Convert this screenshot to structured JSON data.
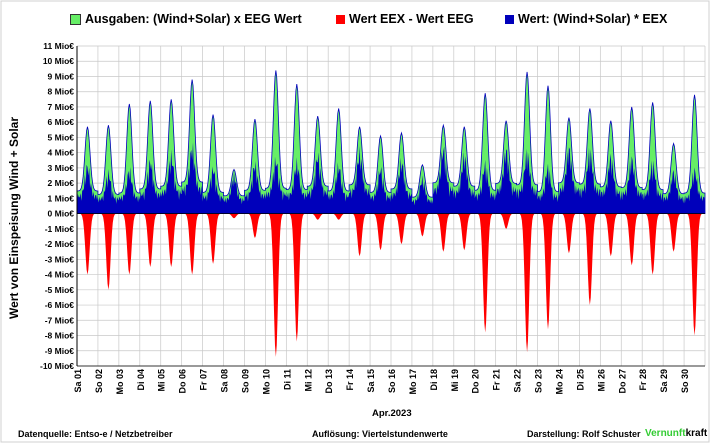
{
  "legend": {
    "green_label": "Ausgaben: (Wind+Solar) x EEG Wert",
    "red_label": "Wert EEX - Wert EEG",
    "blue_label": "Wert: (Wind+Solar) * EEX"
  },
  "footer": {
    "source": "Datenquelle: Entso-e  / Netzbetreiber",
    "resolution": "Auflösung: Viertelstundenwerte",
    "author": "Darstellung:  Rolf Schuster",
    "brand_part1": "Vernunft",
    "brand_part2": "kraft"
  },
  "chart_data": {
    "type": "area",
    "ylabel": "Wert von Einspeisung Wind + Solar",
    "xlabel": "Apr.2023",
    "ylim": [
      -10,
      11
    ],
    "y_ticks": [
      "11 Mio€",
      "10 Mio€",
      "9 Mio€",
      "8 Mio€",
      "7 Mio€",
      "6 Mio€",
      "5 Mio€",
      "4 Mio€",
      "3 Mio€",
      "2 Mio€",
      "1 Mio€",
      "0 Mio€",
      "-1 Mio€",
      "-2 Mio€",
      "-3 Mio€",
      "-4 Mio€",
      "-5 Mio€",
      "-6 Mio€",
      "-7 Mio€",
      "-8 Mio€",
      "-9 Mio€",
      "-10 Mio€"
    ],
    "categories": [
      "Sa 01",
      "So 02",
      "Mo 03",
      "Di 04",
      "Mi 05",
      "Do 06",
      "Fr 07",
      "Sa 08",
      "So 09",
      "Mo 10",
      "Di 11",
      "Mi 12",
      "Do 13",
      "Fr 14",
      "Sa 15",
      "So 16",
      "Mo 17",
      "Di 18",
      "Mi 19",
      "Do 20",
      "Fr 21",
      "Sa 22",
      "So 23",
      "Mo 24",
      "Di 25",
      "Mi 26",
      "Do 27",
      "Fr 28",
      "Sa 29",
      "So 30"
    ],
    "grid": true,
    "legend_position": "top",
    "colors": {
      "green": "#66ee66",
      "red": "#ff0000",
      "blue": "#0000bb"
    },
    "series": [
      {
        "name": "Ausgaben: (Wind+Solar) x EEG Wert",
        "values": [
          5.7,
          5.8,
          7.2,
          7.4,
          7.5,
          8.8,
          6.5,
          2.9,
          6.2,
          9.4,
          8.5,
          6.4,
          6.9,
          5.7,
          5.1,
          5.3,
          3.2,
          5.8,
          5.7,
          7.9,
          6.1,
          9.3,
          8.4,
          6.3,
          6.9,
          6.1,
          7.0,
          7.3,
          4.6,
          7.8
        ]
      },
      {
        "name": "Wert EEX - Wert EEG",
        "values": [
          -4.0,
          -5.0,
          -4.0,
          -3.5,
          -3.5,
          -4.0,
          -3.3,
          -0.3,
          -1.6,
          -9.4,
          -8.4,
          -0.4,
          -0.4,
          -2.8,
          -2.4,
          -2.0,
          -1.5,
          -2.5,
          -2.4,
          -7.8,
          -1.0,
          -9.1,
          -7.6,
          -2.6,
          -6.0,
          -2.8,
          -3.4,
          -4.0,
          -2.5,
          -8.0
        ]
      },
      {
        "name": "Wert: (Wind+Solar) * EEX",
        "values": [
          3.3,
          2.8,
          3.0,
          3.6,
          4.0,
          4.6,
          3.1,
          2.6,
          3.4,
          3.7,
          3.5,
          4.0,
          3.3,
          4.2,
          3.1,
          3.6,
          2.4,
          4.5,
          4.0,
          3.4,
          4.4,
          4.2,
          3.2,
          4.5,
          4.3,
          3.9,
          3.8,
          3.5,
          2.9,
          3.0
        ]
      }
    ]
  }
}
